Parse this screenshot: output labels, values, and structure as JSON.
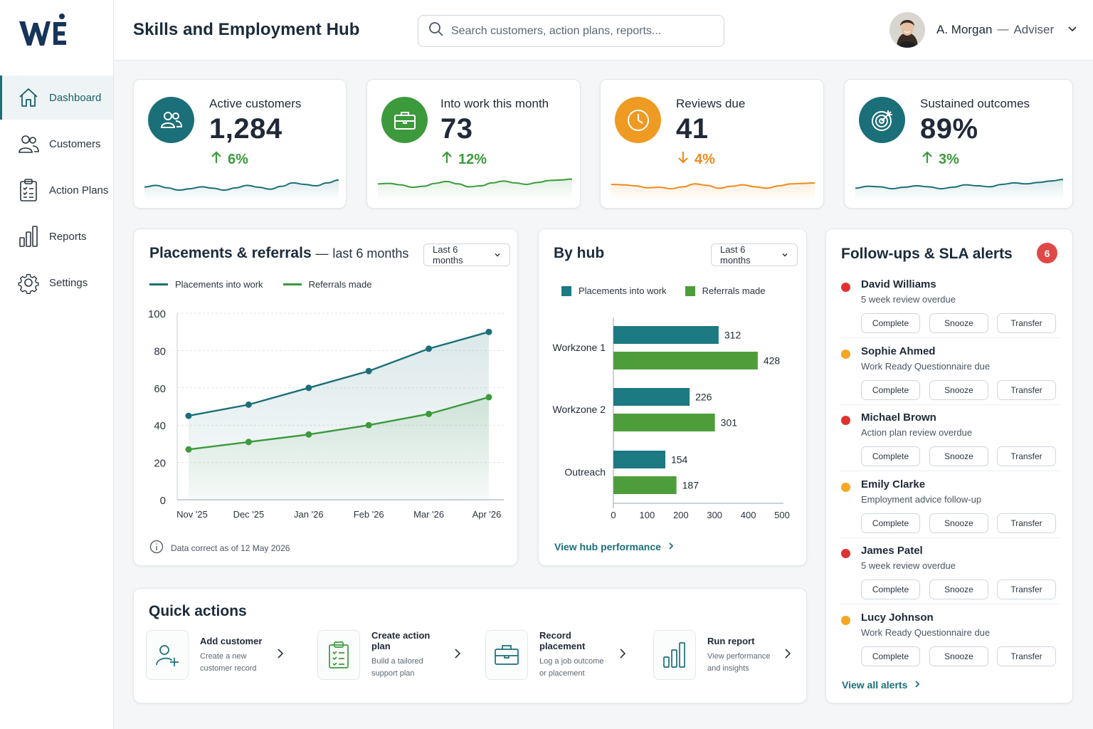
{
  "app": {
    "title": "Skills and Employment Hub"
  },
  "search": {
    "placeholder": "Search customers, action plans, reports..."
  },
  "user": {
    "name": "A. Morgan",
    "separator": "—",
    "role": "Adviser"
  },
  "sidebar": {
    "items": [
      {
        "label": "Dashboard",
        "icon": "home-icon",
        "active": true
      },
      {
        "label": "Customers",
        "icon": "users-icon"
      },
      {
        "label": "Action Plans",
        "icon": "clipboard-icon"
      },
      {
        "label": "Reports",
        "icon": "bar-chart-icon"
      },
      {
        "label": "Settings",
        "icon": "gear-icon"
      }
    ]
  },
  "kpis": [
    {
      "label": "Active customers",
      "value": "1,284",
      "delta": "6%",
      "direction": "up",
      "color": "#1b6f78",
      "icon": "users-icon",
      "trend": [
        0.45,
        0.52,
        0.42,
        0.32,
        0.38,
        0.46,
        0.4,
        0.32,
        0.42,
        0.52,
        0.44,
        0.36,
        0.48,
        0.62,
        0.56,
        0.5,
        0.62,
        0.74
      ]
    },
    {
      "label": "Into work this month",
      "value": "73",
      "delta": "12%",
      "direction": "up",
      "color": "#3c9a3c",
      "icon": "briefcase-icon",
      "trend": [
        0.58,
        0.6,
        0.54,
        0.44,
        0.48,
        0.6,
        0.68,
        0.58,
        0.46,
        0.5,
        0.62,
        0.7,
        0.62,
        0.56,
        0.64,
        0.72,
        0.74,
        0.78
      ]
    },
    {
      "label": "Reviews due",
      "value": "41",
      "delta": "4%",
      "direction": "down",
      "color": "#ef8a1e",
      "icon": "clock-icon",
      "trend": [
        0.56,
        0.54,
        0.5,
        0.42,
        0.44,
        0.38,
        0.46,
        0.58,
        0.52,
        0.4,
        0.48,
        0.54,
        0.46,
        0.4,
        0.5,
        0.58,
        0.6,
        0.62
      ]
    },
    {
      "label": "Sustained outcomes",
      "value": "89%",
      "delta": "3%",
      "direction": "up",
      "color": "#1b6f78",
      "icon": "target-icon",
      "trend": [
        0.4,
        0.48,
        0.46,
        0.38,
        0.44,
        0.5,
        0.46,
        0.38,
        0.44,
        0.54,
        0.5,
        0.46,
        0.56,
        0.62,
        0.58,
        0.64,
        0.7,
        0.76
      ]
    }
  ],
  "placements": {
    "title": "Placements & referrals",
    "separator": "—",
    "subtitle": "last 6 months",
    "filter": "Last 6 months",
    "footnote": "Data correct as of 12 May 2026"
  },
  "hubs": {
    "title": "By hub",
    "filter": "Last 6 months",
    "link": "View hub performance"
  },
  "chart_data": [
    {
      "type": "line",
      "title": "Placements & referrals — last 6 months",
      "categories": [
        "Nov '25",
        "Dec '25",
        "Jan '26",
        "Feb '26",
        "Mar '26",
        "Apr '26"
      ],
      "series": [
        {
          "name": "Placements into work",
          "color": "#1b6f78",
          "values": [
            45,
            51,
            60,
            69,
            81,
            90
          ]
        },
        {
          "name": "Referrals made",
          "color": "#3c9a3c",
          "values": [
            27,
            31,
            35,
            40,
            46,
            55
          ]
        }
      ],
      "yticks": [
        "100",
        "80",
        "60",
        "40",
        "20",
        "0"
      ],
      "ylim": [
        0,
        100
      ],
      "grid": true,
      "legend": "top-left"
    },
    {
      "type": "bar",
      "orientation": "horizontal",
      "title": "By hub",
      "categories": [
        "Workzone 1",
        "Workzone 2",
        "Outreach"
      ],
      "series": [
        {
          "name": "Placements into work",
          "color": "#1b7a82",
          "values": [
            312,
            226,
            154
          ]
        },
        {
          "name": "Referrals made",
          "color": "#4d9e3a",
          "values": [
            428,
            301,
            187
          ]
        }
      ],
      "xticks": [
        "0",
        "100",
        "200",
        "300",
        "400",
        "500"
      ],
      "xlim": [
        0,
        500
      ],
      "legend": "top-left"
    }
  ],
  "alerts": {
    "title": "Follow-ups & SLA alerts",
    "count": "6",
    "link": "View all alerts",
    "actions": [
      "Complete",
      "Snooze",
      "Transfer"
    ],
    "items": [
      {
        "name": "David Williams",
        "desc": "5 week review overdue",
        "status": "#e03131"
      },
      {
        "name": "Sophie Ahmed",
        "desc": "Work Ready Questionnaire due",
        "status": "#f5a623"
      },
      {
        "name": "Michael Brown",
        "desc": "Action plan review overdue",
        "status": "#e03131"
      },
      {
        "name": "Emily Clarke",
        "desc": "Employment advice follow-up",
        "status": "#f5a623"
      },
      {
        "name": "James Patel",
        "desc": "5 week review overdue",
        "status": "#e03131"
      },
      {
        "name": "Lucy Johnson",
        "desc": "Work Ready Questionnaire due",
        "status": "#f5a623"
      }
    ]
  },
  "quick_actions": {
    "title": "Quick actions",
    "items": [
      {
        "title": "Add customer",
        "desc1": "Create a new",
        "desc2": "customer record",
        "icon": "add-user-icon"
      },
      {
        "title": "Create action plan",
        "desc1": "Build a tailored",
        "desc2": "support plan",
        "icon": "clipboard-check-icon"
      },
      {
        "title": "Record placement",
        "desc1": "Log a job outcome",
        "desc2": "or placement",
        "icon": "briefcase-icon"
      },
      {
        "title": "Run report",
        "desc1": "View performance",
        "desc2": "and insights",
        "icon": "bar-chart-icon"
      }
    ]
  }
}
